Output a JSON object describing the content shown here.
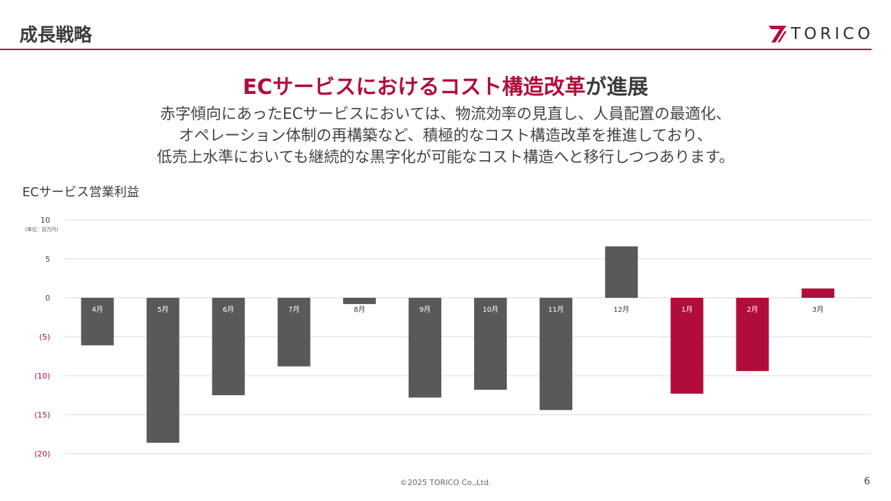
{
  "header": {
    "title": "成長戦略",
    "logo_text": "TORICO"
  },
  "headline": {
    "accent": "ECサービスにおけるコスト構造改革",
    "tail": "が進展"
  },
  "lead": {
    "lines": [
      "赤字傾向にあったECサービスにおいては、物流効率の見直し、人員配置の最適化、",
      "オペレーション体制の再構築など、積極的なコスト構造改革を推進しており、",
      "低売上水準においても継続的な黒字化が可能なコスト構造へと移行しつつあります。"
    ]
  },
  "colors": {
    "accent": "#b00d3a",
    "bar_default": "#595959",
    "grid": "#d9d9d9"
  },
  "chart_data": {
    "type": "bar",
    "title": "ECサービス営業利益",
    "unit": "(単位：百万円)",
    "categories": [
      "4月",
      "5月",
      "6月",
      "7月",
      "8月",
      "9月",
      "10月",
      "11月",
      "12月",
      "1月",
      "2月",
      "3月"
    ],
    "values": [
      -6.1,
      -18.6,
      -12.5,
      -8.8,
      -0.8,
      -12.8,
      -11.8,
      -14.4,
      6.6,
      -12.3,
      -9.4,
      1.2
    ],
    "highlight": [
      false,
      false,
      false,
      false,
      false,
      false,
      false,
      false,
      false,
      true,
      true,
      true
    ],
    "ylim": [
      -20,
      10
    ],
    "yticks": [
      10,
      5,
      0,
      -5,
      -10,
      -15,
      -20
    ],
    "ytick_labels": [
      "10",
      "5",
      "0",
      "(5)",
      "(10)",
      "(15)",
      "(20)"
    ]
  },
  "footer": {
    "copyright": "©2025 TORICO Co.,Ltd.",
    "page": "6"
  }
}
